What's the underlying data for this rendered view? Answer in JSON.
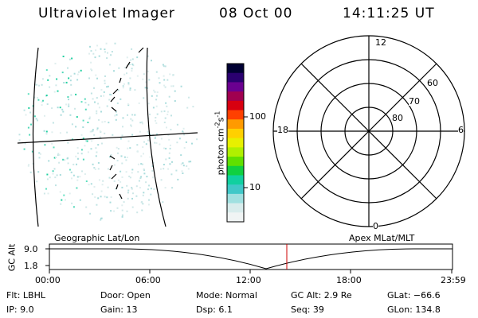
{
  "header": {
    "instrument": "Ultraviolet Imager",
    "date": "08 Oct 00",
    "time": "14:11:25 UT"
  },
  "image_panel": {
    "label": "Geographic Lat/Lon"
  },
  "colorbar": {
    "unit_prefix": "photon cm",
    "unit_exp1": "-2",
    "unit_mid": "s",
    "unit_exp2": "-1",
    "tick_labels": [
      "100",
      "10"
    ],
    "colors": [
      "#000033",
      "#2a0070",
      "#6a0090",
      "#a00050",
      "#d80010",
      "#ff4000",
      "#ff9a00",
      "#ffd000",
      "#e8f000",
      "#b0f000",
      "#60e000",
      "#10d040",
      "#10d0a0",
      "#40c8c8",
      "#a0e0e0",
      "#d8ecec",
      "#f0f4f4"
    ]
  },
  "polar_panel": {
    "label": "Apex MLat/MLT",
    "mlt_labels": {
      "top": "12",
      "left": "18",
      "right": "6",
      "bottom": "0"
    },
    "lat_labels": [
      "60",
      "70",
      "80"
    ]
  },
  "timeline": {
    "y_axis_label": "GC Alt",
    "y_ticks": [
      "9.0",
      "1.8"
    ],
    "x_ticks": [
      "00:00",
      "06:00",
      "12:00",
      "18:00",
      "23:59"
    ],
    "current_time_marker_color": "#cc0000"
  },
  "info": {
    "filter": "Flt: LBHL",
    "ip": "IP:  9.0",
    "door": "Door: Open",
    "gain": "Gain: 13",
    "mode": "Mode: Normal",
    "dsp": "Dsp:    6.1",
    "gc_alt": "GC Alt: 2.9 Re",
    "seq": "Seq: 39",
    "glat": "GLat: −66.6",
    "glon": "GLon: 134.8"
  }
}
